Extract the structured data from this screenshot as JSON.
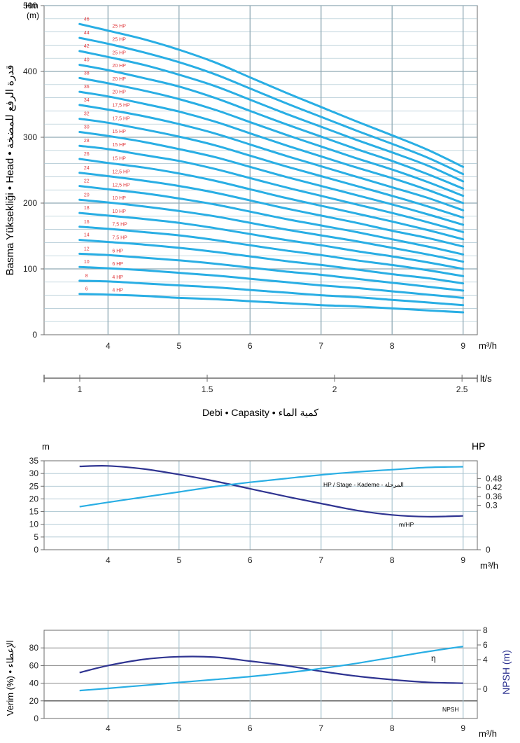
{
  "colors": {
    "grid": "#a9c4cf",
    "axis": "#6b6b6b",
    "curve": "#29aee4",
    "curve_dark": "#2f3491",
    "stage_label": "#e03a3e",
    "hp_label": "#e03a3e",
    "text": "#222222",
    "npsh_axis_label": "#2f3491"
  },
  "labels": {
    "unit_m3h": "m³/h",
    "unit_m3h_bottom": "m³/h",
    "unit_lts": "lt/s",
    "flow_axis_caption": "Debi • Capasity • كمية الماء",
    "hm_line1": "Hm",
    "hm_line2": "(m)"
  },
  "chart_data": [
    {
      "type": "line",
      "title": "",
      "xlabel": "m³/h",
      "ylabel": "Basma Yüksekliği • Head • قدرة الرفع للمضخة",
      "ylabel_top": "Hm (m)",
      "xlim": [
        3.1,
        9.2
      ],
      "ylim": [
        0,
        500
      ],
      "x_ticks": [
        4,
        5,
        6,
        7,
        8,
        9
      ],
      "y_ticks": [
        0,
        100,
        200,
        300,
        400,
        500
      ],
      "grid": true,
      "x": [
        3.6,
        4,
        4.5,
        5,
        5.5,
        6,
        6.5,
        7,
        7.5,
        8,
        8.5,
        9
      ],
      "series": [
        {
          "stage": "6",
          "hp": "4 HP",
          "values": [
            62,
            61,
            59,
            56,
            54,
            51,
            48,
            45,
            43,
            40,
            37,
            34
          ]
        },
        {
          "stage": "8",
          "hp": "4 HP",
          "values": [
            82,
            81,
            78,
            75,
            72,
            68,
            64,
            60,
            57,
            53,
            49,
            45
          ]
        },
        {
          "stage": "10",
          "hp": "6 HP",
          "values": [
            103,
            101,
            98,
            94,
            90,
            85,
            80,
            75,
            71,
            66,
            61,
            56
          ]
        },
        {
          "stage": "12",
          "hp": "6 HP",
          "values": [
            123,
            121,
            117,
            113,
            108,
            102,
            96,
            91,
            85,
            79,
            73,
            67
          ]
        },
        {
          "stage": "14",
          "hp": "7,5 HP",
          "values": [
            144,
            141,
            137,
            132,
            126,
            119,
            112,
            106,
            99,
            92,
            86,
            78
          ]
        },
        {
          "stage": "16",
          "hp": "7,5 HP",
          "values": [
            164,
            161,
            156,
            151,
            144,
            136,
            128,
            121,
            113,
            106,
            98,
            89
          ]
        },
        {
          "stage": "18",
          "hp": "10 HP",
          "values": [
            185,
            181,
            176,
            170,
            162,
            153,
            144,
            136,
            127,
            119,
            110,
            100
          ]
        },
        {
          "stage": "20",
          "hp": "10 HP",
          "values": [
            205,
            201,
            195,
            188,
            180,
            170,
            160,
            151,
            142,
            132,
            122,
            111
          ]
        },
        {
          "stage": "22",
          "hp": "12,5 HP",
          "values": [
            226,
            221,
            215,
            207,
            198,
            187,
            176,
            166,
            156,
            145,
            134,
            122
          ]
        },
        {
          "stage": "24",
          "hp": "12,5 HP",
          "values": [
            246,
            241,
            234,
            226,
            216,
            204,
            192,
            181,
            170,
            158,
            147,
            134
          ]
        },
        {
          "stage": "26",
          "hp": "15 HP",
          "values": [
            267,
            261,
            254,
            245,
            234,
            221,
            208,
            196,
            184,
            172,
            159,
            145
          ]
        },
        {
          "stage": "28",
          "hp": "15 HP",
          "values": [
            287,
            282,
            273,
            264,
            252,
            238,
            224,
            211,
            198,
            185,
            171,
            156
          ]
        },
        {
          "stage": "30",
          "hp": "15 HP",
          "values": [
            308,
            302,
            293,
            282,
            270,
            255,
            240,
            226,
            212,
            198,
            183,
            167
          ]
        },
        {
          "stage": "32",
          "hp": "17,5 HP",
          "values": [
            328,
            322,
            312,
            301,
            288,
            272,
            256,
            241,
            226,
            211,
            195,
            178
          ]
        },
        {
          "stage": "34",
          "hp": "17,5 HP",
          "values": [
            349,
            342,
            332,
            320,
            306,
            289,
            272,
            256,
            240,
            224,
            208,
            189
          ]
        },
        {
          "stage": "36",
          "hp": "20 HP",
          "values": [
            369,
            362,
            351,
            339,
            324,
            306,
            288,
            271,
            254,
            238,
            220,
            200
          ]
        },
        {
          "stage": "38",
          "hp": "20 HP",
          "values": [
            390,
            382,
            371,
            358,
            342,
            323,
            304,
            286,
            268,
            251,
            232,
            211
          ]
        },
        {
          "stage": "40",
          "hp": "20 HP",
          "values": [
            410,
            402,
            390,
            377,
            360,
            340,
            320,
            301,
            282,
            264,
            244,
            222
          ]
        },
        {
          "stage": "42",
          "hp": "25 HP",
          "values": [
            431,
            422,
            410,
            395,
            378,
            357,
            336,
            316,
            296,
            277,
            257,
            233
          ]
        },
        {
          "stage": "44",
          "hp": "25 HP",
          "values": [
            451,
            442,
            429,
            414,
            396,
            374,
            352,
            331,
            310,
            290,
            269,
            244
          ]
        },
        {
          "stage": "46",
          "hp": "25 HP",
          "values": [
            472,
            462,
            449,
            433,
            414,
            391,
            368,
            346,
            324,
            303,
            281,
            255
          ]
        }
      ]
    },
    {
      "type": "axis",
      "xlabel": "lt/s",
      "xlim": [
        0.86,
        2.56
      ],
      "x_ticks": [
        "1",
        "1.5",
        "2",
        "2.5"
      ],
      "caption": "Debi • Capasity • كمية الماء"
    },
    {
      "type": "line",
      "title": "",
      "xlabel": "m³/h",
      "ylabel_left": "m",
      "ylabel_right": "HP",
      "xlim": [
        3.1,
        9.2
      ],
      "ylim_left": [
        0,
        35
      ],
      "ylim_right": [
        0,
        0.6
      ],
      "x_ticks": [
        4,
        5,
        6,
        7,
        8,
        9
      ],
      "y_ticks_left": [
        0,
        5,
        10,
        15,
        20,
        25,
        30,
        35
      ],
      "y_ticks_right": [
        "0",
        "0.3",
        "0.36",
        "0.42",
        "0.48"
      ],
      "grid": true,
      "x": [
        3.6,
        4,
        4.5,
        5,
        5.5,
        6,
        6.5,
        7,
        7.5,
        8,
        8.5,
        9
      ],
      "series": [
        {
          "name": "m/HP",
          "axis": "left",
          "values": [
            32.8,
            33,
            31.8,
            29.6,
            27,
            24,
            21,
            18.2,
            15.5,
            13.7,
            13,
            13.3
          ]
        },
        {
          "name": "HP / Stage - Kademe - المرحلة",
          "axis": "right",
          "values": [
            0.29,
            0.32,
            0.355,
            0.39,
            0.425,
            0.455,
            0.48,
            0.505,
            0.525,
            0.54,
            0.555,
            0.56
          ]
        }
      ]
    },
    {
      "type": "line",
      "title": "",
      "xlabel": "m³/h",
      "ylabel_left": "Verim (%) • الإعطاء",
      "ylabel_right": "NPSH (m)",
      "xlim": [
        3.1,
        9.2
      ],
      "ylim_left": [
        0,
        100
      ],
      "ylim_right": [
        -4,
        8
      ],
      "x_ticks": [
        4,
        5,
        6,
        7,
        8,
        9
      ],
      "y_ticks_left": [
        0,
        20,
        40,
        60,
        80
      ],
      "y_ticks_right": [
        0,
        4,
        6,
        8
      ],
      "grid": true,
      "x": [
        3.6,
        4,
        4.5,
        5,
        5.5,
        6,
        6.5,
        7,
        7.5,
        8,
        8.5,
        9
      ],
      "series": [
        {
          "name": "η",
          "axis": "left",
          "values": [
            52,
            60,
            67,
            70,
            69.5,
            65,
            60,
            53.5,
            48,
            44,
            41,
            40
          ]
        },
        {
          "name": "NPSH",
          "axis": "right",
          "values": [
            -0.2,
            0.1,
            0.5,
            0.9,
            1.3,
            1.7,
            2.2,
            2.8,
            3.5,
            4.3,
            5.1,
            5.8
          ]
        }
      ]
    }
  ]
}
